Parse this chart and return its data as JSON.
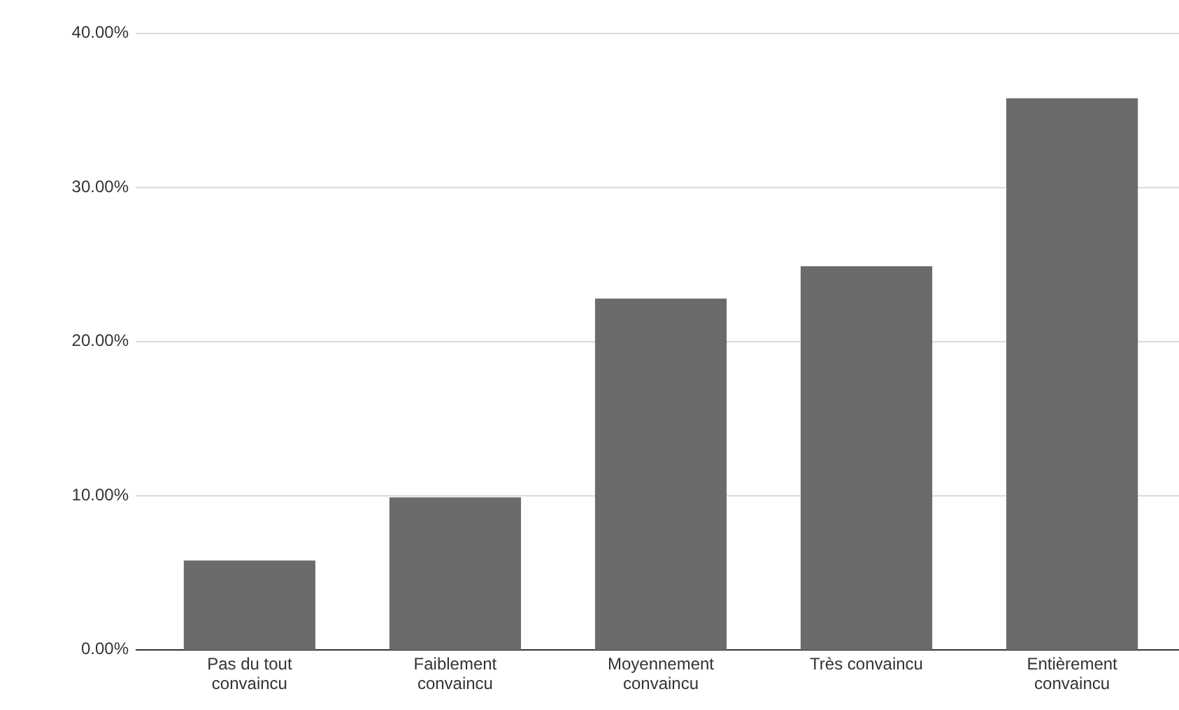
{
  "chart_data": {
    "type": "bar",
    "categories": [
      "Pas du tout convaincu",
      "Faiblement convaincu",
      "Moyennement convaincu",
      "Très convaincu",
      "Entièrement convaincu"
    ],
    "values": [
      5.8,
      9.9,
      22.8,
      24.9,
      35.8
    ],
    "color": "#6b6b6b",
    "ylim": [
      0,
      40
    ],
    "yticks": [
      {
        "value": 0,
        "label": "0.00%"
      },
      {
        "value": 10,
        "label": "10.00%"
      },
      {
        "value": 20,
        "label": "20.00%"
      },
      {
        "value": 30,
        "label": "30.00%"
      },
      {
        "value": 40,
        "label": "40.00%"
      }
    ],
    "grid": "y"
  }
}
